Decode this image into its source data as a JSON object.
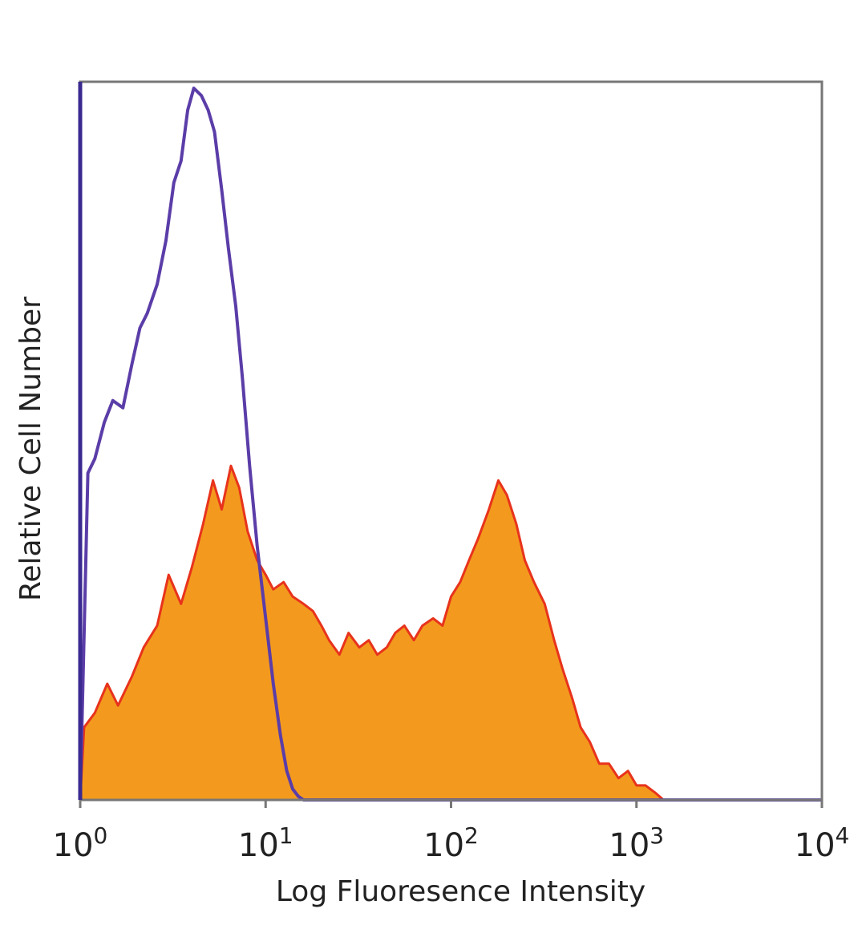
{
  "chart_data": {
    "type": "area",
    "xlabel": "Log Fluoresence Intensity",
    "ylabel": "Relative Cell Number",
    "x_scale": "log",
    "xlim": [
      1,
      10000
    ],
    "ylim": [
      0,
      100
    ],
    "x_ticks": [
      {
        "value": 1,
        "base": "10",
        "exp": "0"
      },
      {
        "value": 10,
        "base": "10",
        "exp": "1"
      },
      {
        "value": 100,
        "base": "10",
        "exp": "2"
      },
      {
        "value": 1000,
        "base": "10",
        "exp": "3"
      },
      {
        "value": 10000,
        "base": "10",
        "exp": "4"
      }
    ],
    "grid": false,
    "legend": "none",
    "series": [
      {
        "style": "filled",
        "color": "#f39a1e",
        "edge_color": "#e8331c",
        "x": [
          1,
          1.05,
          1.2,
          1.4,
          1.6,
          1.9,
          2.2,
          2.6,
          3.0,
          3.5,
          4.0,
          4.6,
          5.2,
          5.8,
          6.5,
          7.2,
          8.0,
          9.0,
          10,
          11,
          12.5,
          14,
          16,
          18,
          20,
          22,
          25,
          28,
          32,
          36,
          40,
          45,
          50,
          56,
          63,
          70,
          80,
          90,
          100,
          112,
          125,
          140,
          160,
          180,
          200,
          225,
          250,
          280,
          320,
          360,
          400,
          450,
          500,
          560,
          630,
          710,
          800,
          900,
          1000,
          1120,
          1260,
          1400,
          10000
        ],
        "y": [
          0,
          10,
          12,
          16,
          13,
          17,
          21,
          24,
          31,
          27,
          32,
          38,
          44,
          40,
          46,
          43,
          37,
          33,
          31,
          29,
          30,
          28,
          27,
          26,
          24,
          22,
          20,
          23,
          21,
          22,
          20,
          21,
          23,
          24,
          22,
          24,
          25,
          24,
          28,
          30,
          33,
          36,
          40,
          44,
          42,
          38,
          33,
          30,
          27,
          22,
          18,
          14,
          10,
          8,
          5,
          5,
          3,
          4,
          2,
          2,
          1,
          0,
          0
        ]
      },
      {
        "style": "line",
        "color": "#5b3da8",
        "x": [
          1,
          1.1,
          1.2,
          1.35,
          1.5,
          1.7,
          1.9,
          2.1,
          2.3,
          2.6,
          2.9,
          3.2,
          3.5,
          3.8,
          4.1,
          4.5,
          4.9,
          5.3,
          5.8,
          6.3,
          6.9,
          7.5,
          8.2,
          9.0,
          10,
          11,
          12,
          13,
          14,
          15,
          16,
          18,
          20,
          10000
        ],
        "y": [
          0,
          45,
          47,
          52,
          55,
          54,
          60,
          65,
          67,
          71,
          77,
          85,
          88,
          95,
          98,
          97,
          95,
          92,
          84,
          76,
          68,
          58,
          46,
          35,
          25,
          16,
          9,
          4,
          1.5,
          0.5,
          0,
          0,
          0,
          0
        ]
      }
    ]
  }
}
